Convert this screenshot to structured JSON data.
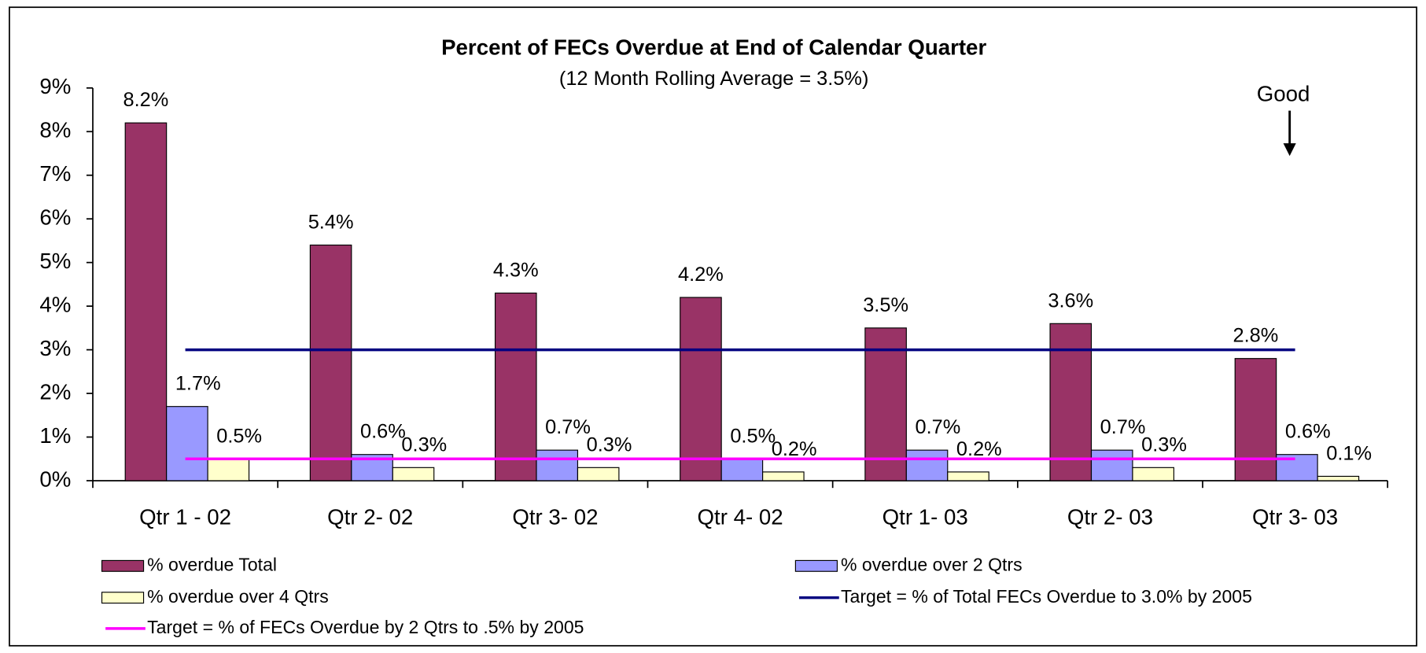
{
  "chart_data": {
    "type": "bar",
    "title": "Percent of FECs Overdue at End of Calendar Quarter",
    "subtitle": "(12 Month Rolling Average = 3.5%)",
    "annotation": "Good",
    "categories": [
      "Qtr 1 - 02",
      "Qtr 2- 02",
      "Qtr 3- 02",
      "Qtr 4- 02",
      "Qtr 1- 03",
      "Qtr 2- 03",
      "Qtr 3- 03"
    ],
    "series": [
      {
        "name": "% overdue Total",
        "color": "#993366",
        "values": [
          8.2,
          5.4,
          4.3,
          4.2,
          3.5,
          3.6,
          2.8
        ],
        "value_labels": [
          "8.2%",
          "5.4%",
          "4.3%",
          "4.2%",
          "3.5%",
          "3.6%",
          "2.8%"
        ]
      },
      {
        "name": "% overdue over 2 Qtrs",
        "color": "#9999ff",
        "values": [
          1.7,
          0.6,
          0.7,
          0.5,
          0.7,
          0.7,
          0.6
        ],
        "value_labels": [
          "1.7%",
          "0.6%",
          "0.7%",
          "0.5%",
          "0.7%",
          "0.7%",
          "0.6%"
        ]
      },
      {
        "name": "% overdue over 4 Qtrs",
        "color": "#ffffcc",
        "values": [
          0.5,
          0.3,
          0.3,
          0.2,
          0.2,
          0.3,
          0.1
        ],
        "value_labels": [
          "0.5%",
          "0.3%",
          "0.3%",
          "0.2%",
          "0.2%",
          "0.3%",
          "0.1%"
        ]
      },
      {
        "name": "Target = % of Total FECs Overdue to 3.0% by 2005",
        "color": "#000080",
        "type": "line",
        "values": [
          3,
          3,
          3,
          3,
          3,
          3,
          3
        ]
      },
      {
        "name": "Target = % of FECs Overdue by 2 Qtrs to .5% by 2005",
        "color": "#ff00ff",
        "type": "line",
        "values": [
          0.5,
          0.5,
          0.5,
          0.5,
          0.5,
          0.5,
          0.5
        ]
      }
    ],
    "ylim": [
      0,
      9
    ],
    "yticks": [
      {
        "value": 0,
        "label": "0%"
      },
      {
        "value": 1,
        "label": "1%"
      },
      {
        "value": 2,
        "label": "2%"
      },
      {
        "value": 3,
        "label": "3%"
      },
      {
        "value": 4,
        "label": "4%"
      },
      {
        "value": 5,
        "label": "5%"
      },
      {
        "value": 6,
        "label": "6%"
      },
      {
        "value": 7,
        "label": "7%"
      },
      {
        "value": 8,
        "label": "8%"
      },
      {
        "value": 9,
        "label": "9%"
      }
    ],
    "grid": false,
    "legend": "bottom"
  }
}
